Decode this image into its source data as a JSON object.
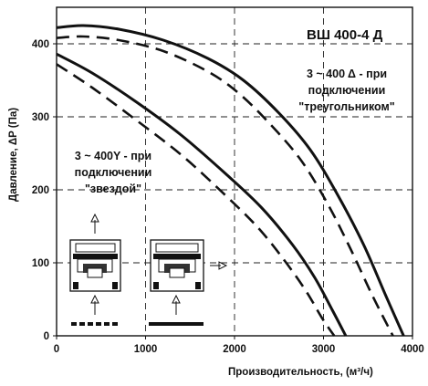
{
  "chart_data": {
    "type": "line",
    "title": "ВШ 400-4 Д",
    "xlabel": "Производительность, (м³/ч)",
    "ylabel": "Давление, ΔP (Па)",
    "xlim": [
      0,
      4000
    ],
    "ylim": [
      0,
      450
    ],
    "x_ticks": [
      "0",
      "1000",
      "2000",
      "3000",
      "4000"
    ],
    "y_ticks": [
      "0",
      "100",
      "200",
      "300",
      "400"
    ],
    "grid": "dashed",
    "annotations": {
      "delta_line1": "3 ~ 400 Δ - при",
      "delta_line2": "подключении",
      "delta_line3": "\"треугольником\"",
      "star_line1": "3 ~ 400Y - при",
      "star_line2": "подключении",
      "star_line3": "\"звездой\""
    },
    "series": [
      {
        "style": "solid",
        "x": [
          0,
          300,
          700,
          1200,
          1700,
          2100,
          2500,
          2850,
          3150,
          3450,
          3700,
          3900
        ],
        "y": [
          422,
          425,
          420,
          405,
          380,
          350,
          305,
          255,
          195,
          125,
          55,
          0
        ]
      },
      {
        "style": "dashed",
        "x": [
          0,
          300,
          700,
          1200,
          1700,
          2050,
          2400,
          2750,
          3050,
          3300,
          3550,
          3780
        ],
        "y": [
          408,
          410,
          405,
          390,
          362,
          332,
          290,
          240,
          180,
          120,
          55,
          0
        ]
      },
      {
        "style": "solid",
        "x": [
          0,
          400,
          900,
          1400,
          1900,
          2300,
          2650,
          2900,
          3100,
          3250
        ],
        "y": [
          386,
          360,
          320,
          275,
          222,
          176,
          125,
          80,
          35,
          0
        ]
      },
      {
        "style": "dashed",
        "x": [
          0,
          400,
          900,
          1400,
          1850,
          2250,
          2550,
          2800,
          2980,
          3120
        ],
        "y": [
          372,
          340,
          295,
          248,
          198,
          150,
          105,
          62,
          25,
          0
        ]
      }
    ]
  },
  "icons": {
    "motor_star": "fan-motor-icon",
    "motor_delta": "fan-motor-icon",
    "arrow_up": "arrow-up-icon",
    "arrow_right": "arrow-right-icon"
  }
}
